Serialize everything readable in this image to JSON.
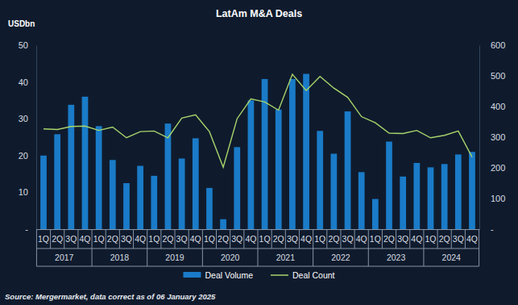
{
  "chart_data": {
    "type": "bar",
    "title": "LatAm M&A Deals",
    "y_label": "USDbn",
    "source": "Source: Mergermarket, data correct as of 06 January 2025",
    "categories": [
      "1Q",
      "2Q",
      "3Q",
      "4Q",
      "1Q",
      "2Q",
      "3Q",
      "4Q",
      "1Q",
      "2Q",
      "3Q",
      "4Q",
      "1Q",
      "2Q",
      "3Q",
      "4Q",
      "1Q",
      "2Q",
      "3Q",
      "4Q",
      "1Q",
      "2Q",
      "3Q",
      "4Q",
      "1Q",
      "2Q",
      "3Q",
      "4Q",
      "1Q",
      "2Q",
      "3Q",
      "4Q"
    ],
    "groups": [
      "2017",
      "2018",
      "2019",
      "2020",
      "2021",
      "2022",
      "2023",
      "2024"
    ],
    "series": [
      {
        "name": "Deal Volume",
        "type": "bar",
        "color": "#1a7bc8",
        "values": [
          20,
          25.8,
          33.8,
          36,
          28,
          18.8,
          12.5,
          17.2,
          14.5,
          28.7,
          19.2,
          24.7,
          11.2,
          2.7,
          22.3,
          35,
          40.8,
          32.5,
          40.8,
          42.2,
          26.7,
          20.5,
          32,
          15.5,
          8.2,
          23.8,
          14.3,
          18,
          16.8,
          17.7,
          20.3,
          21
        ]
      },
      {
        "name": "Deal Count",
        "type": "line",
        "axis": "y2",
        "color": "#a8d36b",
        "values": [
          327,
          325,
          335,
          336,
          322,
          333,
          298,
          318,
          320,
          298,
          362,
          373,
          318,
          202,
          360,
          425,
          415,
          388,
          505,
          452,
          498,
          460,
          430,
          367,
          347,
          313,
          312,
          322,
          298,
          306,
          320,
          235
        ]
      }
    ],
    "ylim": [
      0,
      50
    ],
    "yticks": [
      {
        "value": 0,
        "label": "-"
      },
      10,
      20,
      30,
      40,
      50
    ],
    "y2lim": [
      0,
      600
    ],
    "y2ticks": [
      {
        "value": 0,
        "label": "-"
      },
      100,
      200,
      300,
      400,
      500,
      600
    ],
    "grid": false,
    "legend": "bottom"
  }
}
